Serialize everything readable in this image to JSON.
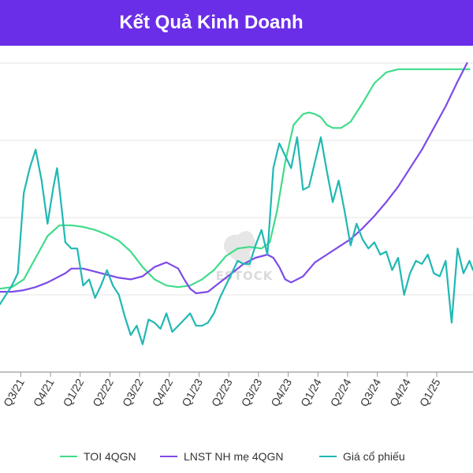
{
  "header": {
    "title": "Kết Quả Kinh Doanh",
    "bg_color": "#6a2ee8"
  },
  "watermark": {
    "text": "ESTOCK"
  },
  "chart_data": {
    "type": "line",
    "title": "Kết Quả Kinh Doanh",
    "xlabel": "",
    "ylabel": "",
    "x_range": [
      2021.45,
      2025.43
    ],
    "y_range": [
      0,
      100
    ],
    "x_tick_labels": [
      "Q3/21",
      "Q4/21",
      "Q1/22",
      "Q2/22",
      "Q3/22",
      "Q4/22",
      "Q1/23",
      "Q2/23",
      "Q3/23",
      "Q4/23",
      "Q1/24",
      "Q2/24",
      "Q3/24",
      "Q4/24",
      "Q1/25"
    ],
    "grid": true,
    "legend_position": "bottom",
    "series": [
      {
        "name": "TOI 4QGN",
        "color": "#3fdc8a",
        "x": [
          2021.45,
          2021.55,
          2021.65,
          2021.75,
          2021.85,
          2021.95,
          2022.05,
          2022.15,
          2022.25,
          2022.35,
          2022.45,
          2022.55,
          2022.65,
          2022.75,
          2022.85,
          2022.95,
          2023.05,
          2023.15,
          2023.25,
          2023.35,
          2023.45,
          2023.55,
          2023.65,
          2023.72,
          2023.78,
          2023.85,
          2023.92,
          2024.0,
          2024.05,
          2024.1,
          2024.15,
          2024.2,
          2024.25,
          2024.32,
          2024.4,
          2024.5,
          2024.6,
          2024.7,
          2024.8,
          2024.9,
          2025.0,
          2025.1,
          2025.2,
          2025.3,
          2025.4
        ],
        "y": [
          27,
          27.5,
          30,
          37,
          44,
          47.5,
          47.5,
          47,
          46,
          44.5,
          42.5,
          39,
          34,
          30,
          28,
          27.5,
          28,
          30,
          33,
          37.5,
          40,
          40.5,
          40,
          42,
          52,
          68,
          80,
          83.5,
          84,
          83.5,
          82.5,
          80,
          79,
          79,
          81,
          87,
          93.5,
          97,
          98,
          98,
          98,
          98,
          98,
          98,
          98
        ]
      },
      {
        "name": "LNST NH mẹ 4QGN",
        "color": "#7d4be8",
        "x": [
          2021.45,
          2021.55,
          2021.65,
          2021.75,
          2021.85,
          2021.95,
          2022.0,
          2022.05,
          2022.15,
          2022.25,
          2022.35,
          2022.45,
          2022.55,
          2022.65,
          2022.75,
          2022.85,
          2022.95,
          2023.0,
          2023.05,
          2023.1,
          2023.2,
          2023.3,
          2023.4,
          2023.5,
          2023.6,
          2023.7,
          2023.75,
          2023.8,
          2023.85,
          2023.9,
          2024.0,
          2024.1,
          2024.2,
          2024.3,
          2024.4,
          2024.5,
          2024.6,
          2024.7,
          2024.8,
          2024.9,
          2025.0,
          2025.1,
          2025.2,
          2025.3,
          2025.38
        ],
        "y": [
          26,
          26,
          26.5,
          27.5,
          29,
          31,
          32,
          33.5,
          33.5,
          32.5,
          31.5,
          30.5,
          30,
          31,
          34,
          35.5,
          33.5,
          30,
          27,
          25.5,
          26,
          29,
          32,
          35,
          37,
          38,
          37,
          34,
          30,
          29,
          31,
          35.5,
          38,
          40.5,
          43,
          46.5,
          50.5,
          55,
          60,
          66,
          72,
          79,
          86,
          94,
          100
        ]
      },
      {
        "name": "Giá cổ phiếu",
        "color": "#20b8b4",
        "x": [
          2021.45,
          2021.5,
          2021.55,
          2021.6,
          2021.65,
          2021.7,
          2021.75,
          2021.8,
          2021.85,
          2021.9,
          2021.93,
          2021.96,
          2022.0,
          2022.05,
          2022.1,
          2022.15,
          2022.2,
          2022.25,
          2022.3,
          2022.35,
          2022.4,
          2022.45,
          2022.5,
          2022.55,
          2022.6,
          2022.65,
          2022.7,
          2022.75,
          2022.8,
          2022.85,
          2022.9,
          2022.95,
          2023.0,
          2023.05,
          2023.1,
          2023.15,
          2023.2,
          2023.25,
          2023.3,
          2023.35,
          2023.4,
          2023.45,
          2023.5,
          2023.55,
          2023.6,
          2023.65,
          2023.7,
          2023.75,
          2023.8,
          2023.85,
          2023.9,
          2023.95,
          2024.0,
          2024.05,
          2024.1,
          2024.15,
          2024.2,
          2024.25,
          2024.3,
          2024.35,
          2024.4,
          2024.45,
          2024.5,
          2024.55,
          2024.6,
          2024.65,
          2024.7,
          2024.75,
          2024.8,
          2024.85,
          2024.9,
          2024.95,
          2025.0,
          2025.05,
          2025.1,
          2025.15,
          2025.2,
          2025.25,
          2025.3,
          2025.35,
          2025.4,
          2025.43
        ],
        "y": [
          22,
          25,
          28,
          32,
          58,
          66,
          72,
          62,
          48,
          60,
          66,
          56,
          42,
          40,
          40,
          28,
          30,
          24,
          28,
          33,
          28,
          25,
          18,
          12,
          15,
          9,
          17,
          16,
          14,
          19,
          13,
          15,
          17,
          19,
          15,
          15,
          16,
          19,
          24,
          28,
          32,
          36,
          35,
          35,
          41,
          46,
          38,
          66,
          74,
          70,
          66,
          76,
          59,
          60,
          68,
          76,
          65,
          55,
          62,
          52,
          41,
          48,
          43,
          40,
          42,
          38,
          39,
          33,
          37,
          25,
          32,
          36,
          35,
          38,
          32,
          31,
          36,
          16,
          40,
          32,
          36,
          33
        ]
      }
    ]
  }
}
